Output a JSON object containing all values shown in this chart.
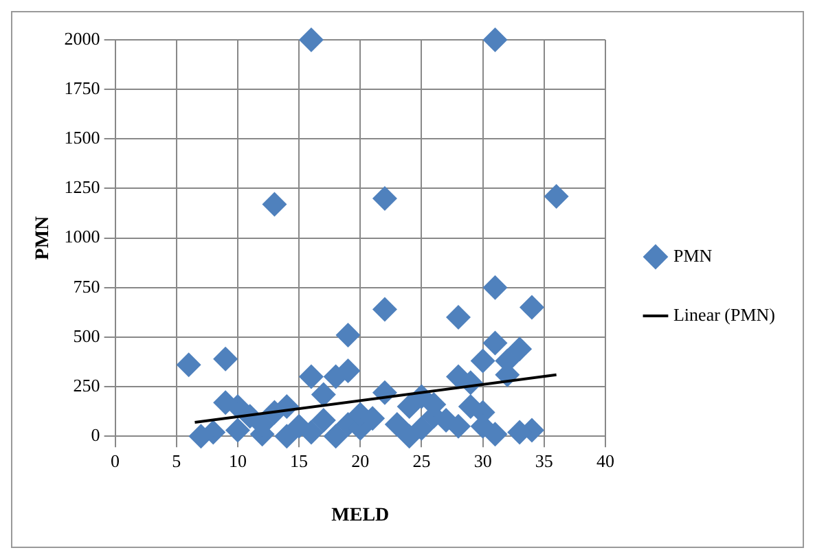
{
  "chart_data": {
    "type": "scatter",
    "xlabel": "MELD",
    "ylabel": "PMN",
    "xlim": [
      0,
      40
    ],
    "xticks": [
      0,
      5,
      10,
      15,
      20,
      25,
      30,
      35,
      40
    ],
    "ylim": [
      0,
      2000
    ],
    "yticks": [
      0,
      250,
      500,
      750,
      1000,
      1250,
      1500,
      1750,
      2000
    ],
    "grid": true,
    "legend": "right",
    "marker": "diamond",
    "series": [
      {
        "name": "PMN",
        "color": "#4f81bd",
        "x": [
          6,
          9,
          16,
          31,
          13,
          22,
          36,
          22,
          31,
          34,
          19,
          28,
          33,
          31,
          30,
          32,
          32,
          19,
          18,
          16,
          22,
          28,
          29,
          17,
          10,
          9,
          11,
          13,
          14,
          8,
          7,
          10,
          12,
          14,
          16,
          18,
          19,
          20,
          20,
          21,
          23,
          24,
          25,
          26,
          27,
          28,
          29,
          30,
          30,
          31,
          34,
          33,
          24,
          25,
          26,
          12,
          15,
          17
        ],
        "values": [
          360,
          390,
          2000,
          2000,
          1170,
          1200,
          1210,
          640,
          750,
          650,
          510,
          600,
          440,
          470,
          380,
          380,
          310,
          330,
          300,
          300,
          220,
          300,
          270,
          210,
          150,
          170,
          100,
          120,
          150,
          20,
          0,
          30,
          10,
          0,
          20,
          0,
          60,
          40,
          110,
          90,
          60,
          0,
          40,
          100,
          80,
          50,
          150,
          120,
          50,
          10,
          30,
          20,
          150,
          200,
          160,
          60,
          50,
          80
        ]
      },
      {
        "name": "Linear (PMN)",
        "type": "line",
        "color": "#000000",
        "marker": "none",
        "x": [
          6.5,
          36
        ],
        "values": [
          70,
          310
        ]
      }
    ]
  }
}
